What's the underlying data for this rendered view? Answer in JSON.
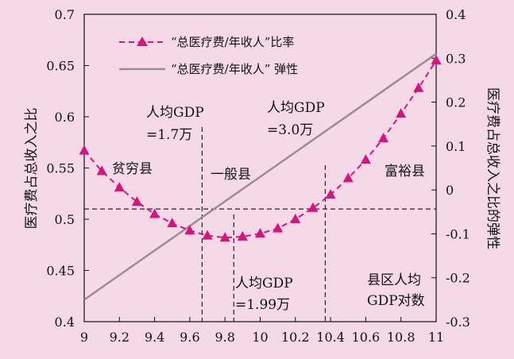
{
  "chart_data": {
    "type": "line",
    "x": [
      9.0,
      9.1,
      9.2,
      9.3,
      9.4,
      9.5,
      9.6,
      9.7,
      9.8,
      9.9,
      10.0,
      10.1,
      10.2,
      10.3,
      10.4,
      10.5,
      10.6,
      10.7,
      10.8,
      10.9,
      11.0
    ],
    "xlim": [
      9,
      11
    ],
    "xticks": [
      "9",
      "9.2",
      "9.4",
      "9.6",
      "9.8",
      "10",
      "10.2",
      "10.4",
      "10.6",
      "10.8",
      "11"
    ],
    "y_left_label": "医疗费占总收入之比",
    "y_right_label": "医疗费占总收入之比的弹性",
    "y_left_lim": [
      0.4,
      0.7
    ],
    "y_right_lim": [
      -0.3,
      0.4
    ],
    "y_left_ticks": [
      "0.4",
      "0.45",
      "0.5",
      "0.55",
      "0.6",
      "0.65",
      "0.7"
    ],
    "y_right_ticks": [
      "-0.3",
      "-0.2",
      "-0.1",
      "0",
      "0.1",
      "0.2",
      "0.3",
      "0.4"
    ],
    "series": [
      {
        "name": "“总医疗费/年收人”比率",
        "axis": "left",
        "style": "dashed-triangle",
        "color": "#d6147c",
        "values": [
          0.567,
          0.547,
          0.531,
          0.517,
          0.505,
          0.496,
          0.489,
          0.484,
          0.482,
          0.483,
          0.486,
          0.491,
          0.5,
          0.511,
          0.524,
          0.54,
          0.558,
          0.579,
          0.603,
          0.628,
          0.655
        ]
      },
      {
        "name": "“总医疗费/年收人” 弹性",
        "axis": "right",
        "style": "solid",
        "color": "#9a8d92",
        "values": [
          -0.25,
          -0.222,
          -0.194,
          -0.166,
          -0.138,
          -0.11,
          -0.082,
          -0.054,
          -0.026,
          0.002,
          0.03,
          0.058,
          0.086,
          0.114,
          0.142,
          0.17,
          0.198,
          0.226,
          0.254,
          0.282,
          0.31
        ]
      }
    ],
    "reference_lines": {
      "horizontal_left_value": 0.51,
      "vertical_x": [
        9.67,
        9.85,
        10.37
      ]
    },
    "annotations": {
      "gdp_low_line1": "人均GDP",
      "gdp_low_line2": "=1.7万",
      "gdp_high_line1": "人均GDP",
      "gdp_high_line2": "=3.0万",
      "gdp_min_line1": "人均GDP",
      "gdp_min_line2": "=1.99万",
      "region_poor": "贫穷县",
      "region_normal": "一般县",
      "region_rich": "富裕县",
      "x_note_line1": "县区人均",
      "x_note_line2": "GDP对数"
    },
    "legend_position": "top-left"
  }
}
